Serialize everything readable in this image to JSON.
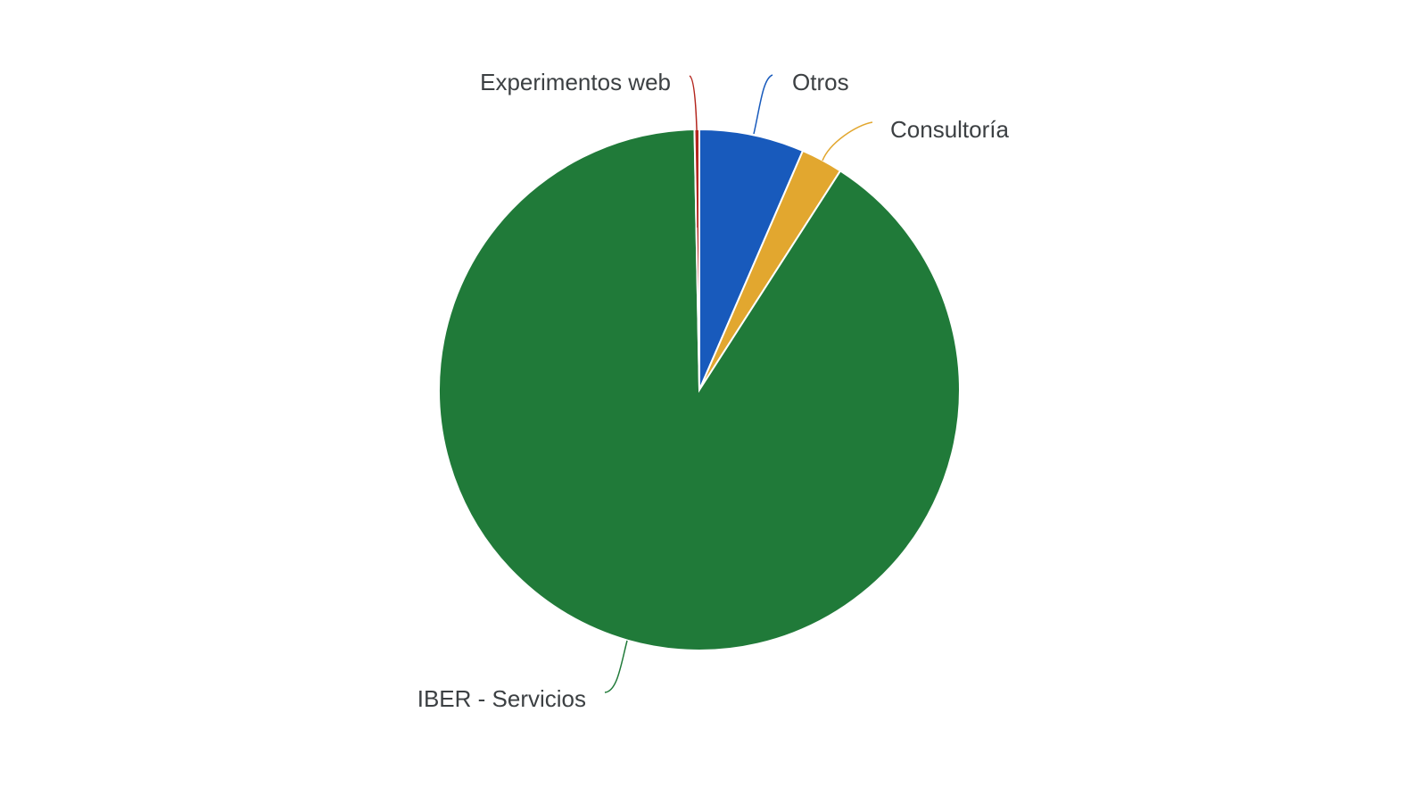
{
  "chart_data": {
    "type": "pie",
    "categories": [
      "Otros",
      "Consultoría",
      "IBER - Servicios",
      "Experimentos web"
    ],
    "values": [
      6.5,
      2.6,
      90.6,
      0.3
    ],
    "colors": [
      "#185abc",
      "#e2a72f",
      "#207a39",
      "#b3261e"
    ]
  }
}
